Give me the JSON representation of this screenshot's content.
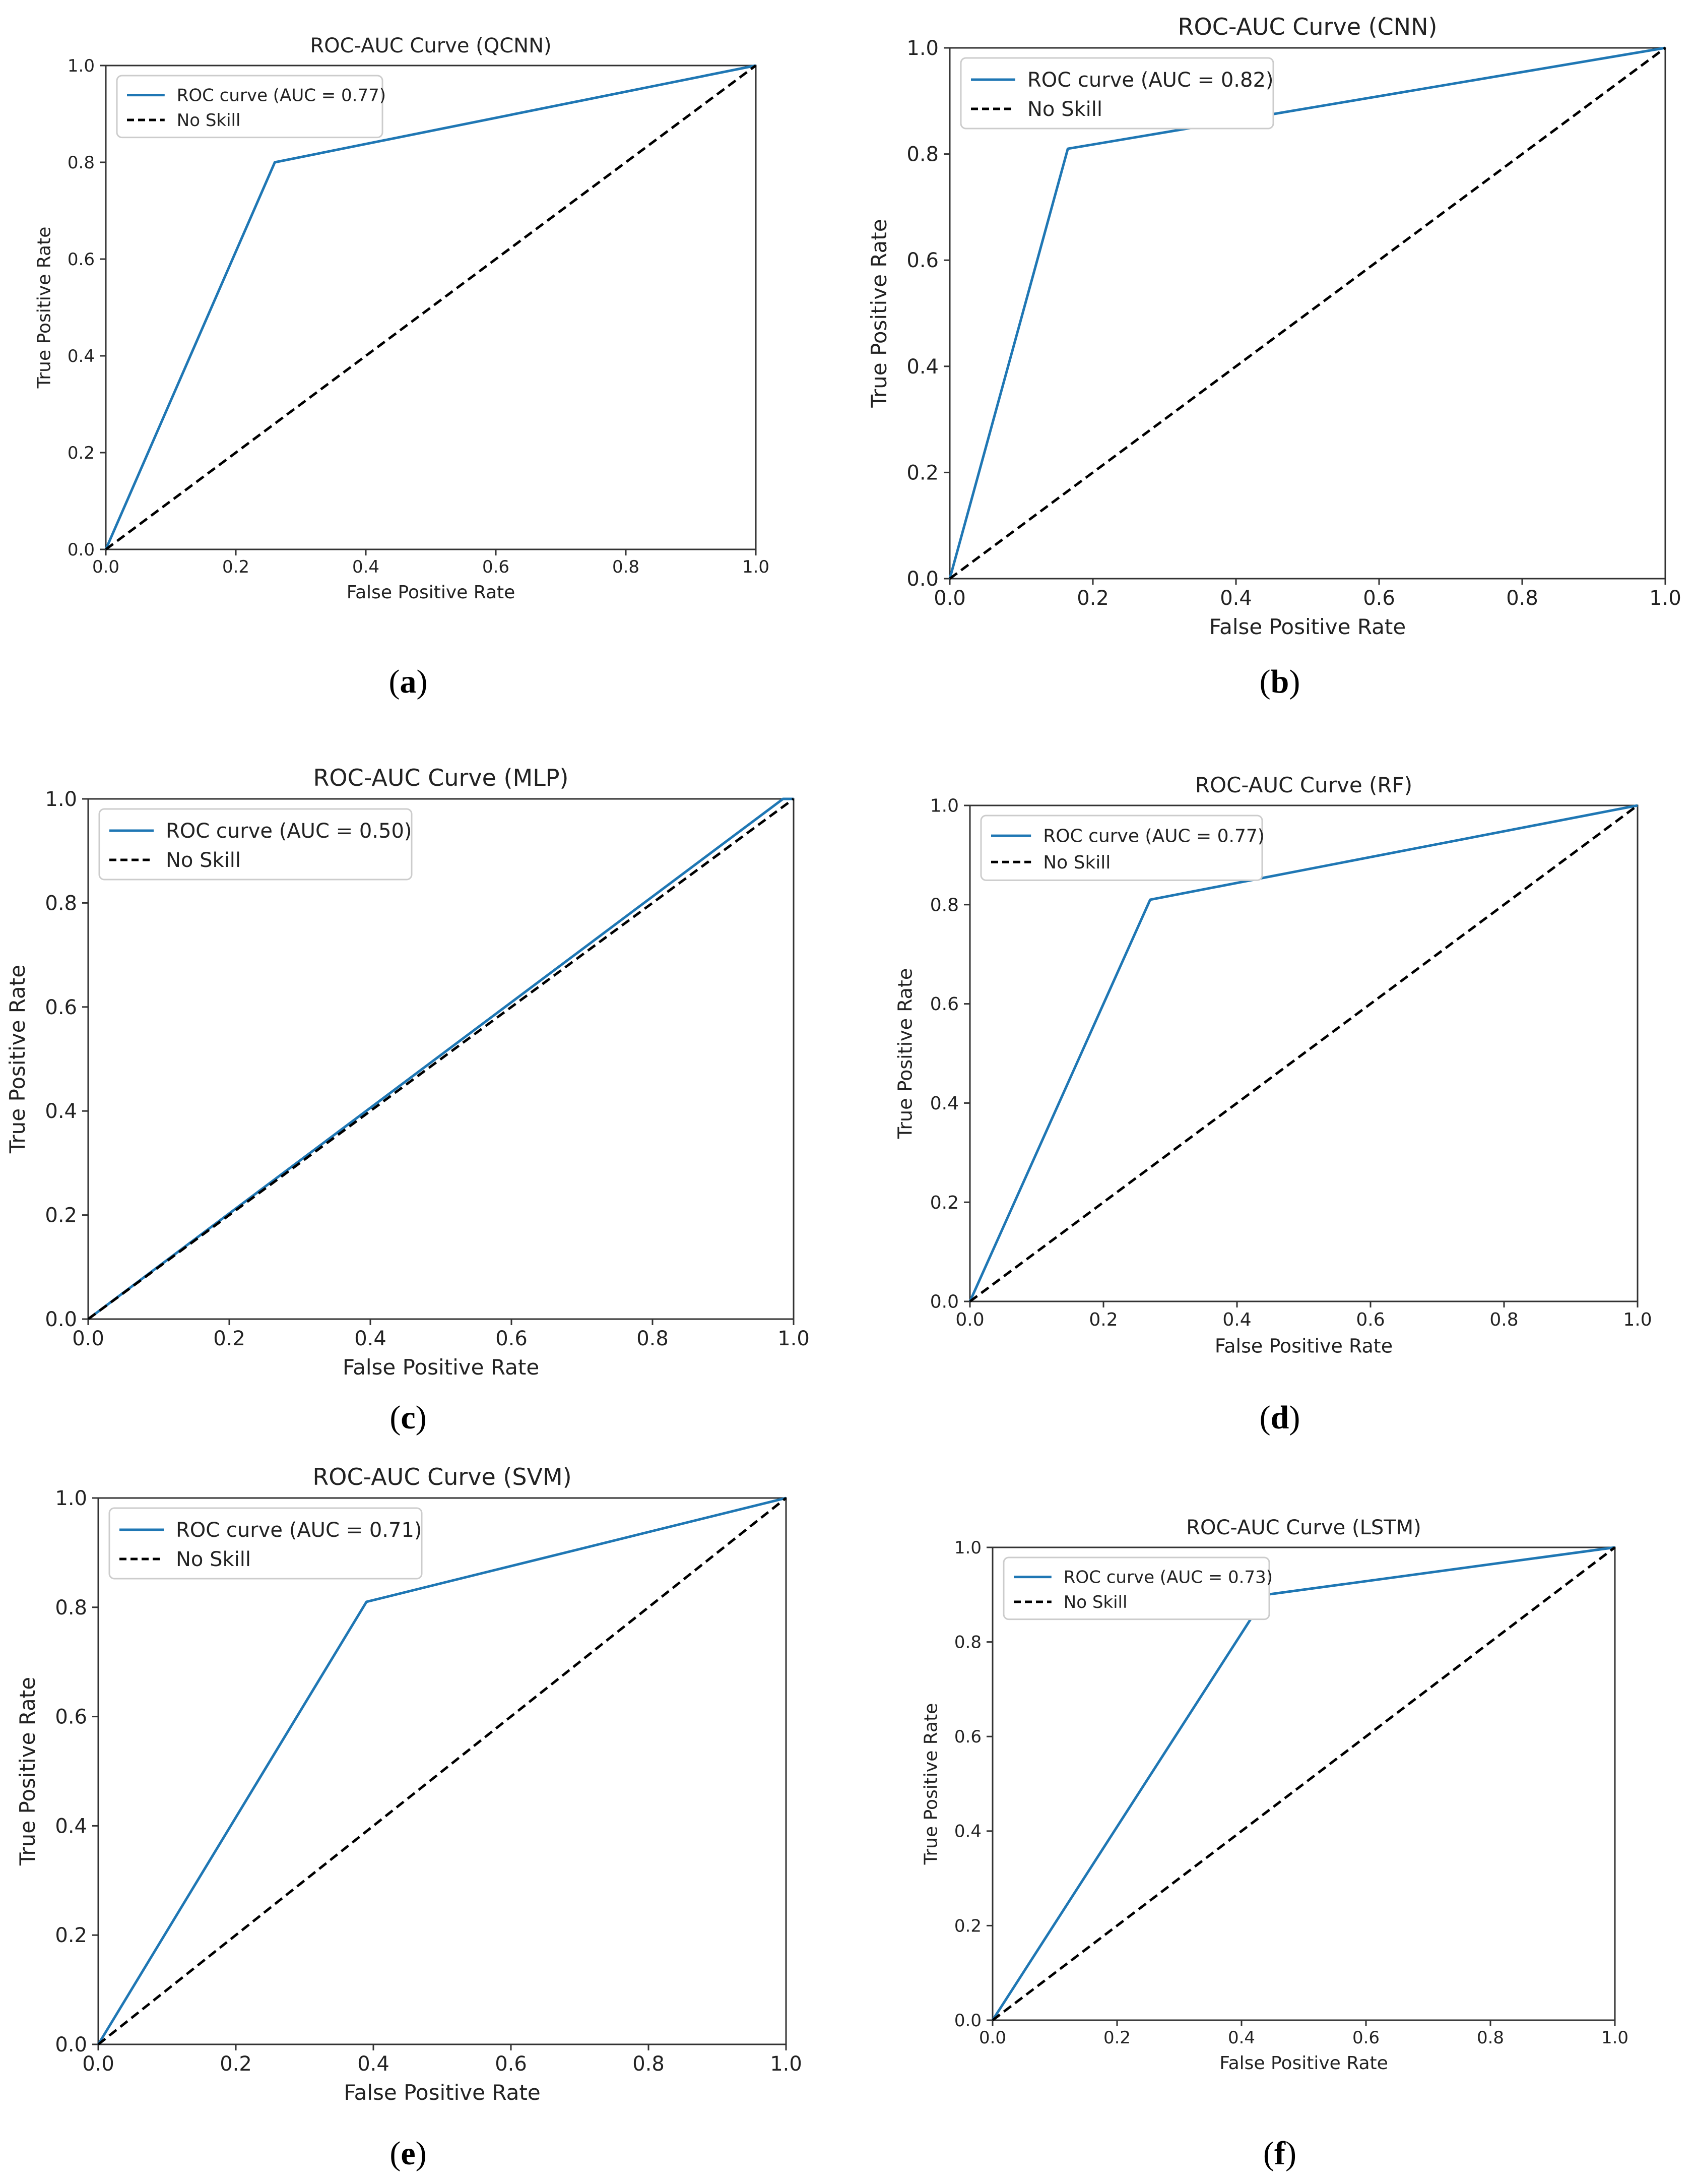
{
  "chart_data": [
    {
      "type": "line",
      "title": "ROC-AUC Curve (QCNN)",
      "xlabel": "False Positive Rate",
      "ylabel": "True Positive Rate",
      "xlim": [
        0,
        1
      ],
      "ylim": [
        0,
        1
      ],
      "xticks": [
        "0.0",
        "0.2",
        "0.4",
        "0.6",
        "0.8",
        "1.0"
      ],
      "yticks": [
        "0.0",
        "0.2",
        "0.4",
        "0.6",
        "0.8",
        "1.0"
      ],
      "legend_position": "top-left",
      "series": [
        {
          "name": "ROC curve (AUC = 0.77)",
          "color": "#1f77b4",
          "style": "solid",
          "x": [
            0,
            0.26,
            1
          ],
          "y": [
            0,
            0.8,
            1
          ]
        },
        {
          "name": "No Skill",
          "color": "#000000",
          "style": "dashed",
          "x": [
            0,
            1
          ],
          "y": [
            0,
            1
          ]
        }
      ],
      "caption": "a"
    },
    {
      "type": "line",
      "title": "ROC-AUC Curve (CNN)",
      "xlabel": "False Positive Rate",
      "ylabel": "True Positive Rate",
      "xlim": [
        0,
        1
      ],
      "ylim": [
        0,
        1
      ],
      "xticks": [
        "0.0",
        "0.2",
        "0.4",
        "0.6",
        "0.8",
        "1.0"
      ],
      "yticks": [
        "0.0",
        "0.2",
        "0.4",
        "0.6",
        "0.8",
        "1.0"
      ],
      "legend_position": "top-left",
      "series": [
        {
          "name": "ROC curve (AUC = 0.82)",
          "color": "#1f77b4",
          "style": "solid",
          "x": [
            0,
            0.165,
            1
          ],
          "y": [
            0,
            0.81,
            1
          ]
        },
        {
          "name": "No Skill",
          "color": "#000000",
          "style": "dashed",
          "x": [
            0,
            1
          ],
          "y": [
            0,
            1
          ]
        }
      ],
      "caption": "b"
    },
    {
      "type": "line",
      "title": "ROC-AUC Curve (MLP)",
      "xlabel": "False Positive Rate",
      "ylabel": "True Positive Rate",
      "xlim": [
        0,
        1
      ],
      "ylim": [
        0,
        1
      ],
      "xticks": [
        "0.0",
        "0.2",
        "0.4",
        "0.6",
        "0.8",
        "1.0"
      ],
      "yticks": [
        "0.0",
        "0.2",
        "0.4",
        "0.6",
        "0.8",
        "1.0"
      ],
      "legend_position": "top-left",
      "series": [
        {
          "name": "ROC curve (AUC = 0.50)",
          "color": "#1f77b4",
          "style": "solid",
          "x": [
            0,
            0.985,
            1
          ],
          "y": [
            0,
            1.0,
            1
          ]
        },
        {
          "name": "No Skill",
          "color": "#000000",
          "style": "dashed",
          "x": [
            0,
            1
          ],
          "y": [
            0,
            1
          ]
        }
      ],
      "caption": "c"
    },
    {
      "type": "line",
      "title": "ROC-AUC Curve (RF)",
      "xlabel": "False Positive Rate",
      "ylabel": "True Positive Rate",
      "xlim": [
        0,
        1
      ],
      "ylim": [
        0,
        1
      ],
      "xticks": [
        "0.0",
        "0.2",
        "0.4",
        "0.6",
        "0.8",
        "1.0"
      ],
      "yticks": [
        "0.0",
        "0.2",
        "0.4",
        "0.6",
        "0.8",
        "1.0"
      ],
      "legend_position": "top-left",
      "series": [
        {
          "name": "ROC curve (AUC = 0.77)",
          "color": "#1f77b4",
          "style": "solid",
          "x": [
            0,
            0.27,
            1
          ],
          "y": [
            0,
            0.81,
            1
          ]
        },
        {
          "name": "No Skill",
          "color": "#000000",
          "style": "dashed",
          "x": [
            0,
            1
          ],
          "y": [
            0,
            1
          ]
        }
      ],
      "caption": "d"
    },
    {
      "type": "line",
      "title": "ROC-AUC Curve (SVM)",
      "xlabel": "False Positive Rate",
      "ylabel": "True Positive Rate",
      "xlim": [
        0,
        1
      ],
      "ylim": [
        0,
        1
      ],
      "xticks": [
        "0.0",
        "0.2",
        "0.4",
        "0.6",
        "0.8",
        "1.0"
      ],
      "yticks": [
        "0.0",
        "0.2",
        "0.4",
        "0.6",
        "0.8",
        "1.0"
      ],
      "legend_position": "top-left",
      "series": [
        {
          "name": "ROC curve (AUC = 0.71)",
          "color": "#1f77b4",
          "style": "solid",
          "x": [
            0,
            0.39,
            1
          ],
          "y": [
            0,
            0.81,
            1
          ]
        },
        {
          "name": "No Skill",
          "color": "#000000",
          "style": "dashed",
          "x": [
            0,
            1
          ],
          "y": [
            0,
            1
          ]
        }
      ],
      "caption": "e"
    },
    {
      "type": "line",
      "title": "ROC-AUC Curve (LSTM)",
      "xlabel": "False Positive Rate",
      "ylabel": "True Positive Rate",
      "xlim": [
        0,
        1
      ],
      "ylim": [
        0,
        1
      ],
      "xticks": [
        "0.0",
        "0.2",
        "0.4",
        "0.6",
        "0.8",
        "1.0"
      ],
      "yticks": [
        "0.0",
        "0.2",
        "0.4",
        "0.6",
        "0.8",
        "1.0"
      ],
      "legend_position": "top-left",
      "series": [
        {
          "name": "ROC curve (AUC = 0.73)",
          "color": "#1f77b4",
          "style": "solid",
          "x": [
            0,
            0.44,
            1
          ],
          "y": [
            0,
            0.9,
            1
          ]
        },
        {
          "name": "No Skill",
          "color": "#000000",
          "style": "dashed",
          "x": [
            0,
            1
          ],
          "y": [
            0,
            1
          ]
        }
      ],
      "caption": "f"
    }
  ]
}
